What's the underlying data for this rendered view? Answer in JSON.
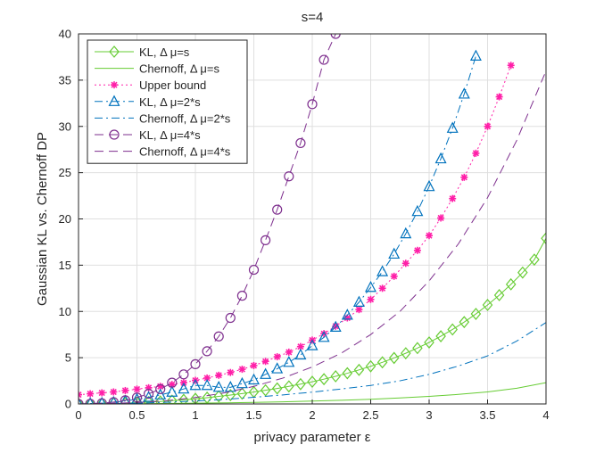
{
  "chart_data": {
    "type": "line",
    "title": "s=4",
    "xlabel": "privacy parameter ε",
    "ylabel": "Gaussian KL vs. Chernoff DP",
    "xlim": [
      0,
      4
    ],
    "ylim": [
      0,
      40
    ],
    "x_ticks": [
      "0",
      "0.5",
      "1",
      "1.5",
      "2",
      "2.5",
      "3",
      "3.5",
      "4"
    ],
    "y_ticks": [
      "0",
      "5",
      "10",
      "15",
      "20",
      "25",
      "30",
      "35",
      "40"
    ],
    "grid": true,
    "legend_position": "top-left",
    "series": [
      {
        "name": "KL, Δ μ=s",
        "color": "#66cc33",
        "marker": "diamond",
        "linestyle": "solid",
        "x": [
          0,
          0.1,
          0.2,
          0.3,
          0.4,
          0.5,
          0.6,
          0.7,
          0.8,
          0.9,
          1.0,
          1.1,
          1.2,
          1.3,
          1.4,
          1.5,
          1.6,
          1.7,
          1.8,
          1.9,
          2.0,
          2.1,
          2.2,
          2.3,
          2.4,
          2.5,
          2.6,
          2.7,
          2.8,
          2.9,
          3.0,
          3.1,
          3.2,
          3.3,
          3.4,
          3.5,
          3.6,
          3.7,
          3.8,
          3.9,
          4.0
        ],
        "values": [
          0,
          0.01,
          0.02,
          0.05,
          0.09,
          0.14,
          0.2,
          0.27,
          0.36,
          0.45,
          0.56,
          0.68,
          0.82,
          0.96,
          1.12,
          1.29,
          1.48,
          1.68,
          1.9,
          2.14,
          2.4,
          2.68,
          2.99,
          3.32,
          3.68,
          4.07,
          4.5,
          4.97,
          5.48,
          6.04,
          6.65,
          7.32,
          8.05,
          8.85,
          9.73,
          10.7,
          11.76,
          12.93,
          14.2,
          15.6,
          17.9
        ]
      },
      {
        "name": "Chernoff, Δ μ=s",
        "color": "#66cc33",
        "marker": "none",
        "linestyle": "solid",
        "x": [
          0,
          0.25,
          0.5,
          0.75,
          1.0,
          1.25,
          1.5,
          1.75,
          2.0,
          2.25,
          2.5,
          2.75,
          3.0,
          3.25,
          3.5,
          3.75,
          4.0
        ],
        "values": [
          0,
          0.005,
          0.02,
          0.045,
          0.08,
          0.12,
          0.17,
          0.23,
          0.31,
          0.4,
          0.51,
          0.65,
          0.82,
          1.03,
          1.3,
          1.7,
          2.3
        ]
      },
      {
        "name": "Upper bound",
        "color": "#ff1fa8",
        "marker": "asterisk",
        "linestyle": "dotted",
        "x": [
          0,
          0.1,
          0.2,
          0.3,
          0.4,
          0.5,
          0.6,
          0.7,
          0.8,
          0.9,
          1.0,
          1.1,
          1.2,
          1.3,
          1.4,
          1.5,
          1.6,
          1.7,
          1.8,
          1.9,
          2.0,
          2.1,
          2.2,
          2.3,
          2.4,
          2.5,
          2.6,
          2.7,
          2.8,
          2.9,
          3.0,
          3.1,
          3.2,
          3.3,
          3.4,
          3.5,
          3.6,
          3.7
        ],
        "values": [
          1.0,
          1.1,
          1.2,
          1.3,
          1.45,
          1.6,
          1.75,
          1.9,
          2.1,
          2.3,
          2.55,
          2.8,
          3.1,
          3.4,
          3.75,
          4.15,
          4.6,
          5.1,
          5.6,
          6.2,
          6.9,
          7.6,
          8.4,
          9.3,
          10.2,
          11.3,
          12.5,
          13.8,
          15.2,
          16.6,
          18.2,
          20.1,
          22.2,
          24.5,
          27.1,
          30.0,
          33.2,
          36.6
        ]
      },
      {
        "name": "KL, Δ μ=2*s",
        "color": "#0072bd",
        "marker": "triangle",
        "linestyle": "dashdot",
        "x": [
          0,
          0.1,
          0.2,
          0.3,
          0.4,
          0.5,
          0.6,
          0.7,
          0.8,
          0.9,
          1.0,
          1.1,
          1.2,
          1.3,
          1.4,
          1.5,
          1.6,
          1.7,
          1.8,
          1.9,
          2.0,
          2.1,
          2.2,
          2.3,
          2.4,
          2.5,
          2.6,
          2.7,
          2.8,
          2.9,
          3.0,
          3.1,
          3.2,
          3.3,
          3.4
        ],
        "values": [
          0,
          0.04,
          0.08,
          0.18,
          0.32,
          0.5,
          0.72,
          0.98,
          1.28,
          1.62,
          2.0,
          2.0,
          1.8,
          1.8,
          2.2,
          2.6,
          3.2,
          3.8,
          4.5,
          5.3,
          6.3,
          7.2,
          8.3,
          9.6,
          11.0,
          12.6,
          14.3,
          16.2,
          18.4,
          20.8,
          23.5,
          26.5,
          29.8,
          33.5,
          37.6
        ]
      },
      {
        "name": "Chernoff, Δ μ=2*s",
        "color": "#0072bd",
        "marker": "none",
        "linestyle": "dashdot",
        "x": [
          0,
          0.25,
          0.5,
          0.75,
          1.0,
          1.25,
          1.5,
          1.75,
          2.0,
          2.25,
          2.5,
          2.75,
          3.0,
          3.25,
          3.5,
          3.75,
          4.0
        ],
        "values": [
          0,
          0.02,
          0.08,
          0.18,
          0.32,
          0.5,
          0.72,
          0.98,
          1.28,
          1.62,
          2.0,
          2.5,
          3.2,
          4.1,
          5.2,
          6.8,
          8.8
        ]
      },
      {
        "name": "KL, Δ μ=4*s",
        "color": "#7e2f8e",
        "marker": "circle",
        "linestyle": "dashed",
        "x": [
          0,
          0.1,
          0.2,
          0.3,
          0.4,
          0.5,
          0.6,
          0.7,
          0.8,
          0.9,
          1.0,
          1.1,
          1.2,
          1.3,
          1.4,
          1.5,
          1.6,
          1.7,
          1.8,
          1.9,
          2.0,
          2.1,
          2.2
        ],
        "values": [
          0,
          0.02,
          0.08,
          0.2,
          0.4,
          0.7,
          1.1,
          1.6,
          2.3,
          3.2,
          4.3,
          5.7,
          7.3,
          9.3,
          11.7,
          14.5,
          17.7,
          21.0,
          24.6,
          28.2,
          32.4,
          37.2,
          40.0
        ]
      },
      {
        "name": "Chernoff, Δ μ=4*s",
        "color": "#7e2f8e",
        "marker": "none",
        "linestyle": "dashed",
        "x": [
          0,
          0.25,
          0.5,
          0.75,
          1.0,
          1.25,
          1.5,
          1.75,
          2.0,
          2.25,
          2.5,
          2.75,
          3.0,
          3.25,
          3.5,
          3.75,
          4.0
        ],
        "values": [
          0,
          0.05,
          0.15,
          0.35,
          0.7,
          1.2,
          1.9,
          2.8,
          4.0,
          5.5,
          7.5,
          10.0,
          13.3,
          17.3,
          22.3,
          28.5,
          36.0
        ]
      }
    ]
  }
}
